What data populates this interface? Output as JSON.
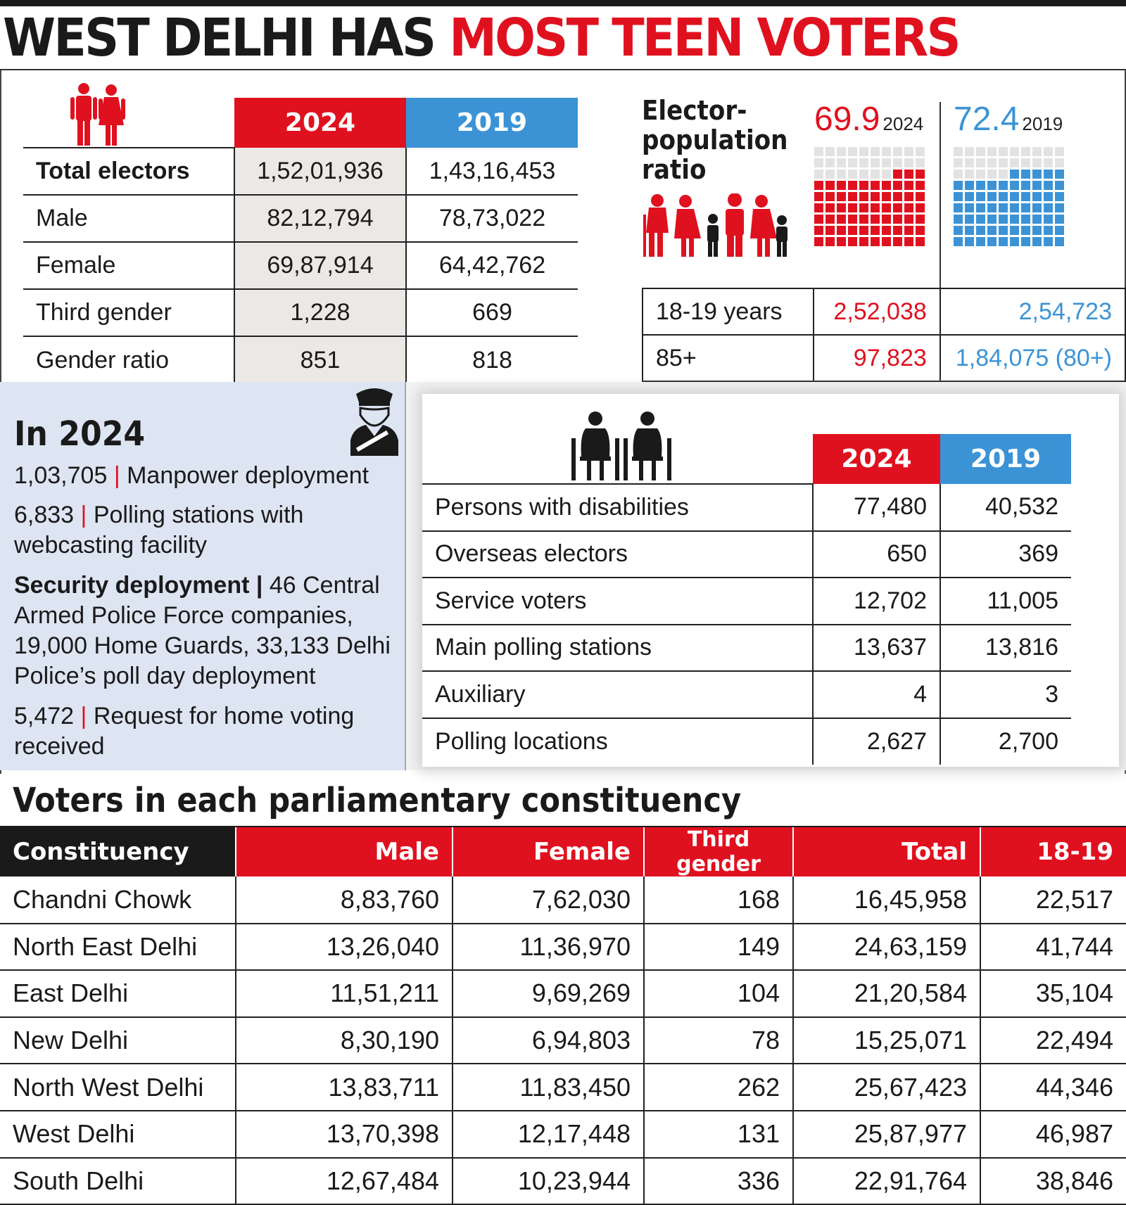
{
  "title": {
    "part1": "WEST DELHI HAS",
    "part2": "MOST TEEN VOTERS"
  },
  "electors_table": {
    "col_2024": "2024",
    "col_2019": "2019",
    "rows": [
      {
        "label": "Total electors",
        "v2024": "1,52,01,936",
        "v2019": "1,43,16,453"
      },
      {
        "label": "Male",
        "v2024": "82,12,794",
        "v2019": "78,73,022"
      },
      {
        "label": "Female",
        "v2024": "69,87,914",
        "v2019": "64,42,762"
      },
      {
        "label": "Third gender",
        "v2024": "1,228",
        "v2019": "669"
      },
      {
        "label": "Gender ratio",
        "v2024": "851",
        "v2019": "818"
      }
    ]
  },
  "ratio": {
    "title_line1": "Elector-",
    "title_line2": "population",
    "title_line3": "ratio",
    "v2024": "69.9",
    "y2024": "2024",
    "v2019": "72.4",
    "y2019": "2019",
    "color_2024": "#e0111f",
    "color_2019": "#3b93d6"
  },
  "age_table": {
    "rows": [
      {
        "label": "18-19 years",
        "v2024": "2,52,038",
        "v2019": "2,54,723"
      },
      {
        "label": "85+",
        "v2024": "97,823",
        "v2019": "1,84,075 (80+)"
      }
    ]
  },
  "in2024": {
    "heading": "In 2024",
    "items": [
      {
        "num": "1,03,705",
        "sep": "|",
        "text": "Manpower deployment"
      },
      {
        "num": "6,833",
        "sep": "|",
        "text": "Polling stations with webcasting facility"
      },
      {
        "num": "Security deployment",
        "sep": "|",
        "text": "46 Central Armed Police Force companies, 19,000 Home Guards, 33,133 Delhi Police’s poll day deployment"
      },
      {
        "num": "5,472",
        "sep": "|",
        "text": "Request for home voting received"
      }
    ]
  },
  "misc_table": {
    "col_2024": "2024",
    "col_2019": "2019",
    "rows": [
      {
        "label": "Persons with disabilities",
        "v2024": "77,480",
        "v2019": "40,532"
      },
      {
        "label": "Overseas electors",
        "v2024": "650",
        "v2019": "369"
      },
      {
        "label": "Service voters",
        "v2024": "12,702",
        "v2019": "11,005"
      },
      {
        "label": "Main polling stations",
        "v2024": "13,637",
        "v2019": "13,816"
      },
      {
        "label": "Auxiliary",
        "v2024": "4",
        "v2019": "3"
      },
      {
        "label": "Polling locations",
        "v2024": "2,627",
        "v2019": "2,700"
      }
    ]
  },
  "constituency": {
    "section_title": "Voters in each parliamentary constituency",
    "headers": [
      "Constituency",
      "Male",
      "Female",
      "Third gender",
      "Total",
      "18-19"
    ],
    "rows": [
      [
        "Chandni Chowk",
        "8,83,760",
        "7,62,030",
        "168",
        "16,45,958",
        "22,517"
      ],
      [
        "North East Delhi",
        "13,26,040",
        "11,36,970",
        "149",
        "24,63,159",
        "41,744"
      ],
      [
        "East Delhi",
        "11,51,211",
        "9,69,269",
        "104",
        "21,20,584",
        "35,104"
      ],
      [
        "New Delhi",
        "8,30,190",
        "6,94,803",
        "78",
        "15,25,071",
        "22,494"
      ],
      [
        "North West Delhi",
        "13,83,711",
        "11,83,450",
        "262",
        "25,67,423",
        "44,346"
      ],
      [
        "West Delhi",
        "13,70,398",
        "12,17,448",
        "131",
        "25,87,977",
        "46,987"
      ],
      [
        "South Delhi",
        "12,67,484",
        "10,23,944",
        "336",
        "22,91,764",
        "38,846"
      ]
    ]
  },
  "icons": {
    "couple": "couple-icon",
    "family": "family-icon",
    "police": "police-officer-icon",
    "wheelchair": "wheelchair-users-icon"
  }
}
